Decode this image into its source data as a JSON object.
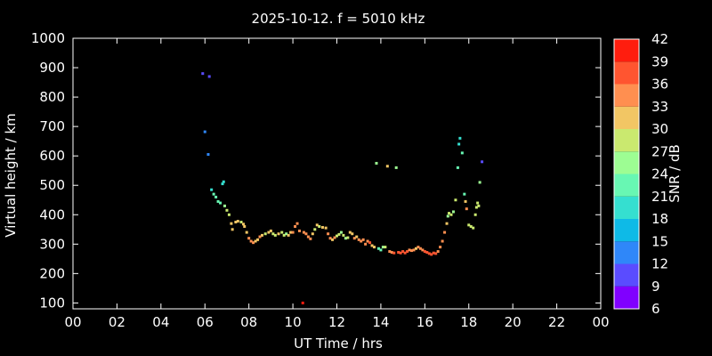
{
  "chart_data": {
    "type": "scatter",
    "title": "2025-10-12. f = 5010 kHz",
    "xlabel": "UT Time / hrs",
    "ylabel": "Virtual height / km",
    "colorbar_label": "SNR / dB",
    "xlim": [
      0,
      24
    ],
    "ylim": [
      80,
      1000
    ],
    "xticks": [
      "00",
      "02",
      "04",
      "06",
      "08",
      "10",
      "12",
      "14",
      "16",
      "18",
      "20",
      "22",
      "00"
    ],
    "yticks": [
      "100",
      "200",
      "300",
      "400",
      "500",
      "600",
      "700",
      "800",
      "900",
      "1000"
    ],
    "colorbar": {
      "min": 6,
      "max": 42,
      "ticks": [
        "6",
        "9",
        "12",
        "15",
        "18",
        "21",
        "24",
        "27",
        "30",
        "33",
        "36",
        "39",
        "42"
      ],
      "colors": [
        "#8000ff",
        "#5a4cff",
        "#2f87f9",
        "#0ebae7",
        "#35dfd0",
        "#68f7b3",
        "#9dfd93",
        "#cae96f",
        "#f2c664",
        "#ff8f50",
        "#ff5530",
        "#ff1d0e"
      ]
    },
    "grid": false,
    "points": [
      [
        5.9,
        880,
        10
      ],
      [
        6.2,
        870,
        11
      ],
      [
        6.0,
        682,
        12
      ],
      [
        6.15,
        605,
        13
      ],
      [
        6.3,
        485,
        20
      ],
      [
        6.4,
        470,
        21
      ],
      [
        6.5,
        460,
        22
      ],
      [
        6.6,
        445,
        23
      ],
      [
        6.7,
        440,
        23
      ],
      [
        6.8,
        505,
        20
      ],
      [
        6.85,
        512,
        19
      ],
      [
        6.9,
        430,
        26
      ],
      [
        7.0,
        415,
        28
      ],
      [
        7.1,
        400,
        28
      ],
      [
        7.2,
        370,
        30
      ],
      [
        7.25,
        350,
        31
      ],
      [
        7.4,
        375,
        30
      ],
      [
        7.5,
        378,
        30
      ],
      [
        7.65,
        375,
        29
      ],
      [
        7.75,
        368,
        30
      ],
      [
        7.8,
        360,
        31
      ],
      [
        7.9,
        340,
        32
      ],
      [
        8.0,
        320,
        33
      ],
      [
        8.1,
        310,
        35
      ],
      [
        8.2,
        305,
        33
      ],
      [
        8.3,
        310,
        31
      ],
      [
        8.4,
        315,
        30
      ],
      [
        8.5,
        325,
        33
      ],
      [
        8.6,
        330,
        32
      ],
      [
        8.75,
        335,
        29
      ],
      [
        8.9,
        340,
        30
      ],
      [
        9.0,
        345,
        31
      ],
      [
        9.1,
        335,
        29
      ],
      [
        9.2,
        330,
        28
      ],
      [
        9.35,
        335,
        30
      ],
      [
        9.5,
        340,
        27
      ],
      [
        9.6,
        330,
        28
      ],
      [
        9.7,
        335,
        26
      ],
      [
        9.8,
        330,
        30
      ],
      [
        9.9,
        340,
        32
      ],
      [
        10.0,
        340,
        33
      ],
      [
        10.1,
        360,
        33
      ],
      [
        10.2,
        370,
        34
      ],
      [
        10.3,
        345,
        35
      ],
      [
        10.45,
        100,
        40
      ],
      [
        10.5,
        340,
        34
      ],
      [
        10.6,
        335,
        35
      ],
      [
        10.7,
        325,
        35
      ],
      [
        10.8,
        318,
        34
      ],
      [
        10.9,
        335,
        32
      ],
      [
        11.0,
        350,
        28
      ],
      [
        11.1,
        365,
        30
      ],
      [
        11.2,
        360,
        29
      ],
      [
        11.35,
        357,
        32
      ],
      [
        11.5,
        355,
        31
      ],
      [
        11.6,
        335,
        35
      ],
      [
        11.7,
        320,
        33
      ],
      [
        11.8,
        315,
        32
      ],
      [
        11.9,
        322,
        33
      ],
      [
        12.0,
        328,
        29
      ],
      [
        12.1,
        333,
        28
      ],
      [
        12.2,
        340,
        26
      ],
      [
        12.3,
        330,
        28
      ],
      [
        12.4,
        320,
        26
      ],
      [
        12.5,
        322,
        29
      ],
      [
        12.6,
        340,
        30
      ],
      [
        12.7,
        335,
        31
      ],
      [
        12.8,
        320,
        33
      ],
      [
        12.9,
        325,
        32
      ],
      [
        13.0,
        315,
        35
      ],
      [
        13.1,
        310,
        34
      ],
      [
        13.2,
        315,
        35
      ],
      [
        13.3,
        300,
        33
      ],
      [
        13.4,
        310,
        33
      ],
      [
        13.5,
        305,
        36
      ],
      [
        13.6,
        295,
        31
      ],
      [
        13.7,
        290,
        30
      ],
      [
        13.8,
        575,
        25
      ],
      [
        13.9,
        285,
        22
      ],
      [
        14.0,
        280,
        21
      ],
      [
        14.1,
        290,
        26
      ],
      [
        14.2,
        290,
        28
      ],
      [
        14.3,
        565,
        30
      ],
      [
        14.4,
        275,
        33
      ],
      [
        14.5,
        272,
        35
      ],
      [
        14.6,
        270,
        36
      ],
      [
        14.7,
        560,
        25
      ],
      [
        14.8,
        272,
        37
      ],
      [
        14.9,
        270,
        37
      ],
      [
        15.0,
        275,
        37
      ],
      [
        15.1,
        270,
        36
      ],
      [
        15.2,
        275,
        37
      ],
      [
        15.3,
        280,
        34
      ],
      [
        15.4,
        278,
        33
      ],
      [
        15.5,
        280,
        33
      ],
      [
        15.6,
        285,
        31
      ],
      [
        15.7,
        290,
        35
      ],
      [
        15.8,
        285,
        35
      ],
      [
        15.9,
        280,
        34
      ],
      [
        16.0,
        275,
        36
      ],
      [
        16.1,
        272,
        37
      ],
      [
        16.2,
        268,
        36
      ],
      [
        16.3,
        265,
        38
      ],
      [
        16.4,
        270,
        36
      ],
      [
        16.5,
        268,
        38
      ],
      [
        16.6,
        275,
        35
      ],
      [
        16.7,
        290,
        34
      ],
      [
        16.8,
        310,
        33
      ],
      [
        16.9,
        340,
        33
      ],
      [
        17.0,
        370,
        31
      ],
      [
        17.05,
        395,
        26
      ],
      [
        17.1,
        405,
        29
      ],
      [
        17.2,
        400,
        28
      ],
      [
        17.3,
        410,
        25
      ],
      [
        17.4,
        450,
        29
      ],
      [
        17.5,
        560,
        22
      ],
      [
        17.55,
        640,
        20
      ],
      [
        17.6,
        660,
        18
      ],
      [
        17.7,
        610,
        21
      ],
      [
        17.8,
        470,
        23
      ],
      [
        17.85,
        445,
        31
      ],
      [
        17.9,
        420,
        33
      ],
      [
        18.0,
        365,
        27
      ],
      [
        18.1,
        360,
        29
      ],
      [
        18.2,
        355,
        29
      ],
      [
        18.3,
        400,
        28
      ],
      [
        18.35,
        425,
        29
      ],
      [
        18.4,
        440,
        27
      ],
      [
        18.45,
        430,
        28
      ],
      [
        18.5,
        510,
        24
      ],
      [
        18.6,
        580,
        11
      ]
    ]
  }
}
